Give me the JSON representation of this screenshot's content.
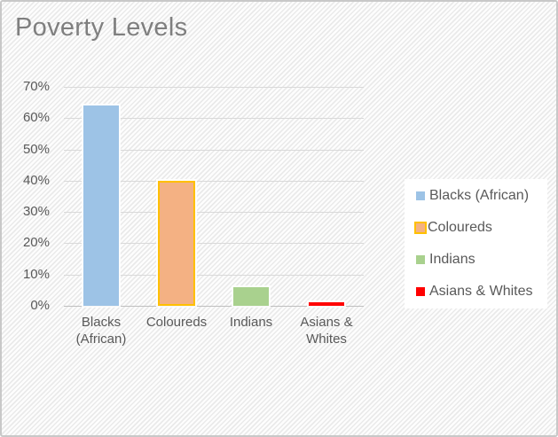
{
  "colors": {
    "title_text": "#7F7F7F",
    "axis_text": "#595959",
    "gridline": "#D9D9D9",
    "axis_line": "#BFBFBF",
    "legend_bg": "#FFFFFF",
    "frame_border": "#C8C8C8",
    "background_stripe": "#EAEAEA"
  },
  "chart_data": {
    "type": "bar",
    "title": "Poverty Levels",
    "categories": [
      "Blacks (African)",
      "Coloureds",
      "Indians",
      "Asians & Whites"
    ],
    "values": [
      64,
      40,
      6,
      1
    ],
    "value_format": "percent",
    "xlabel": "",
    "ylabel": "",
    "ylim": [
      0,
      70
    ],
    "ytick_step": 10,
    "yticks": [
      "70%",
      "60%",
      "50%",
      "40%",
      "30%",
      "20%",
      "10%",
      "0%"
    ],
    "grid": true,
    "legend_position": "right",
    "legend_labels": [
      "Blacks (African)",
      "Coloureds",
      "Indians",
      "Asians & Whites"
    ],
    "series_styles": [
      {
        "fill": "#9DC3E6",
        "border": null
      },
      {
        "fill": "#F4B183",
        "border": "#FFC000"
      },
      {
        "fill": "#A9D18E",
        "border": null
      },
      {
        "fill": "#FF0000",
        "border": null
      }
    ]
  }
}
